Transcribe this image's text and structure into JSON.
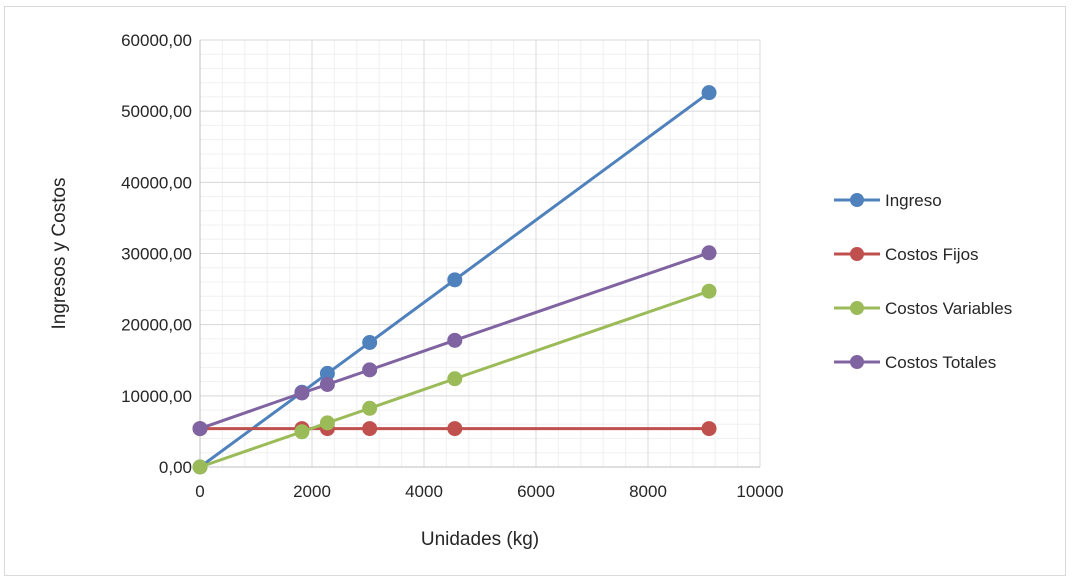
{
  "chart_data": {
    "type": "scatter",
    "title": "",
    "xlabel": "Unidades (kg)",
    "ylabel": "Ingresos y Costos",
    "xlim": [
      0,
      10000
    ],
    "ylim": [
      0,
      60000
    ],
    "x_ticks": [
      "0",
      "2000",
      "4000",
      "6000",
      "8000",
      "10000"
    ],
    "y_ticks": [
      "0,00",
      "10000,00",
      "20000,00",
      "30000,00",
      "40000,00",
      "50000,00",
      "60000,00"
    ],
    "grid": true,
    "minor_grid": true,
    "legend_position": "right",
    "series": [
      {
        "name": "Ingreso",
        "color": "#4f81bd",
        "points": [
          [
            0,
            0
          ],
          [
            1820,
            10500
          ],
          [
            2275,
            13150
          ],
          [
            3030,
            17500
          ],
          [
            4550,
            26300
          ],
          [
            9090,
            52600
          ]
        ]
      },
      {
        "name": "Costos Fijos",
        "color": "#c0504d",
        "points": [
          [
            0,
            5400
          ],
          [
            1820,
            5400
          ],
          [
            2275,
            5400
          ],
          [
            3030,
            5400
          ],
          [
            4550,
            5400
          ],
          [
            9090,
            5400
          ]
        ]
      },
      {
        "name": "Costos Variables",
        "color": "#9bbb59",
        "points": [
          [
            0,
            0
          ],
          [
            1820,
            4950
          ],
          [
            2275,
            6200
          ],
          [
            3030,
            8250
          ],
          [
            4550,
            12400
          ],
          [
            9090,
            24700
          ]
        ]
      },
      {
        "name": "Costos Totales",
        "color": "#8064a2",
        "points": [
          [
            0,
            5400
          ],
          [
            1820,
            10400
          ],
          [
            2275,
            11600
          ],
          [
            3030,
            13650
          ],
          [
            4550,
            17800
          ],
          [
            9090,
            30100
          ]
        ]
      }
    ]
  }
}
